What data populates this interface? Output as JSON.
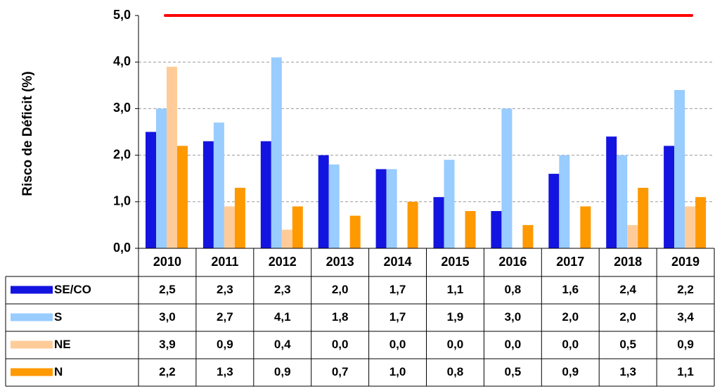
{
  "chart_data": {
    "type": "bar",
    "y_label": "Risco de Déficit (%)",
    "categories": [
      "2010",
      "2011",
      "2012",
      "2013",
      "2014",
      "2015",
      "2016",
      "2017",
      "2018",
      "2019"
    ],
    "series": [
      {
        "name": "SE/CO",
        "color": "#1414e0",
        "values": [
          2.5,
          2.3,
          2.3,
          2.0,
          1.7,
          1.1,
          0.8,
          1.6,
          2.4,
          2.2
        ],
        "value_labels": [
          "2,5",
          "2,3",
          "2,3",
          "2,0",
          "1,7",
          "1,1",
          "0,8",
          "1,6",
          "2,4",
          "2,2"
        ]
      },
      {
        "name": "S",
        "color": "#99ccff",
        "values": [
          3.0,
          2.7,
          4.1,
          1.8,
          1.7,
          1.9,
          3.0,
          2.0,
          2.0,
          3.4
        ],
        "value_labels": [
          "3,0",
          "2,7",
          "4,1",
          "1,8",
          "1,7",
          "1,9",
          "3,0",
          "2,0",
          "2,0",
          "3,4"
        ]
      },
      {
        "name": "NE",
        "color": "#ffcc99",
        "values": [
          3.9,
          0.9,
          0.4,
          0.0,
          0.0,
          0.0,
          0.0,
          0.0,
          0.5,
          0.9
        ],
        "value_labels": [
          "3,9",
          "0,9",
          "0,4",
          "0,0",
          "0,0",
          "0,0",
          "0,0",
          "0,0",
          "0,5",
          "0,9"
        ]
      },
      {
        "name": "N",
        "color": "#ff9900",
        "values": [
          2.2,
          1.3,
          0.9,
          0.7,
          1.0,
          0.8,
          0.5,
          0.9,
          1.3,
          1.1
        ],
        "value_labels": [
          "2,2",
          "1,3",
          "0,9",
          "0,7",
          "1,0",
          "0,8",
          "0,5",
          "0,9",
          "1,3",
          "1,1"
        ]
      }
    ],
    "ylim": [
      0,
      5
    ],
    "yticks": [
      {
        "value": 0,
        "label": "0,0"
      },
      {
        "value": 1,
        "label": "1,0"
      },
      {
        "value": 2,
        "label": "2,0"
      },
      {
        "value": 3,
        "label": "3,0"
      },
      {
        "value": 4,
        "label": "4,0"
      },
      {
        "value": 5,
        "label": "5,0"
      }
    ],
    "grid": true,
    "limit_line": {
      "value": 5,
      "color": "#ff0000"
    }
  }
}
